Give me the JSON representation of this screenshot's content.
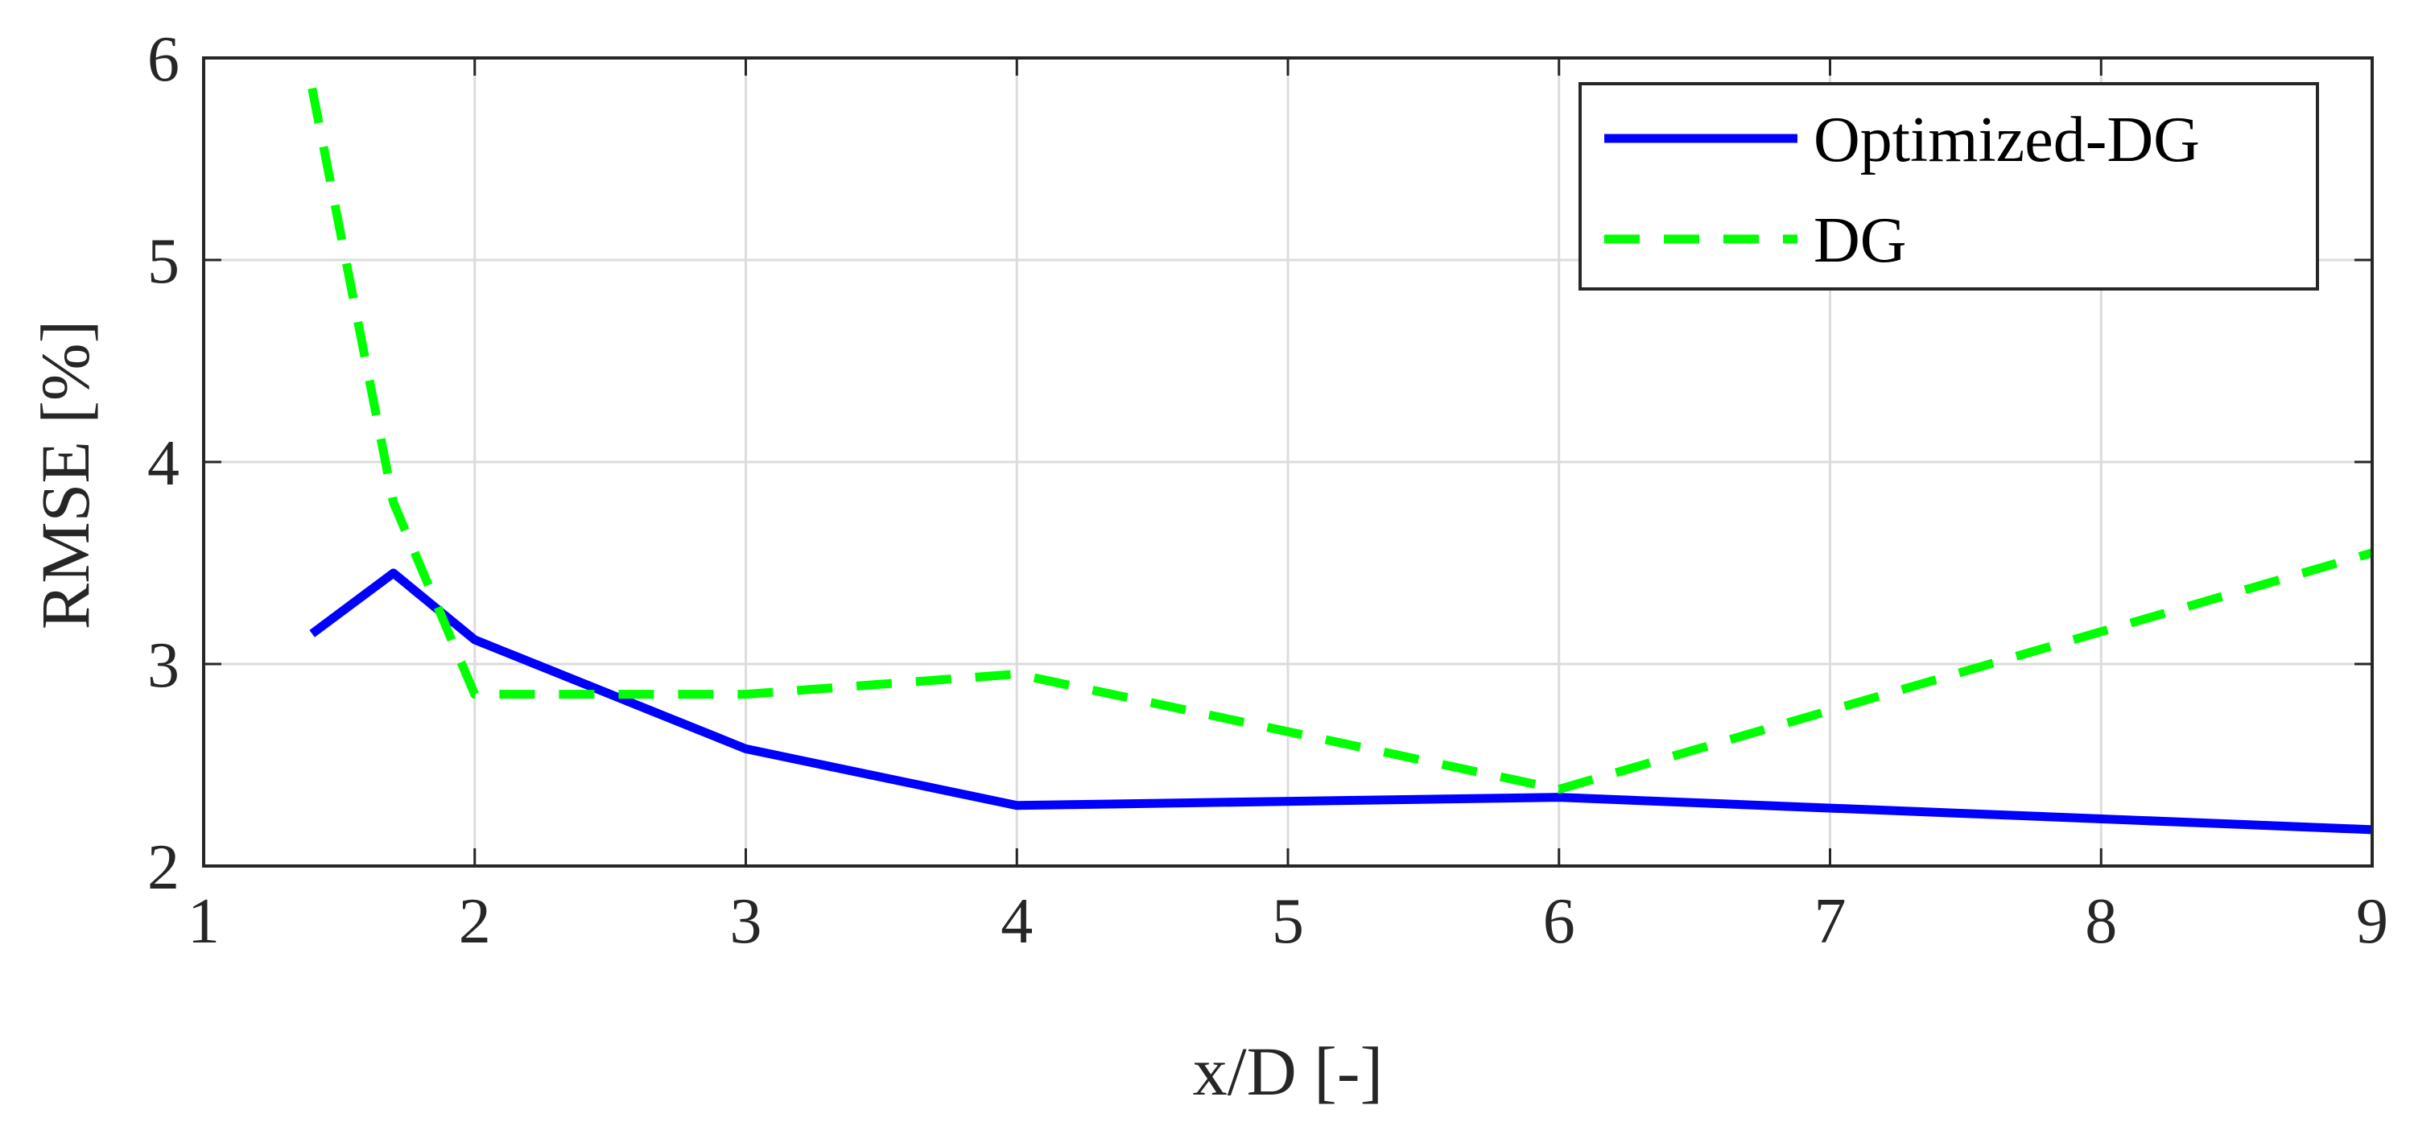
{
  "chart_data": {
    "type": "line",
    "xlabel": "x/D [-]",
    "ylabel": "RMSE [%]",
    "series": [
      {
        "name": "Optimized-DG",
        "color": "#0000ff",
        "dash": false,
        "x": [
          1.4,
          1.7,
          2,
          3,
          4,
          6,
          9
        ],
        "values": [
          3.15,
          3.45,
          3.12,
          2.58,
          2.3,
          2.34,
          2.18
        ]
      },
      {
        "name": "DG",
        "color": "#00ff00",
        "dash": true,
        "x": [
          1.4,
          1.7,
          2,
          3,
          4,
          6,
          9
        ],
        "values": [
          5.85,
          3.8,
          2.85,
          2.85,
          2.95,
          2.38,
          3.55
        ]
      }
    ],
    "xlim": [
      1,
      9
    ],
    "xticks": [
      1,
      2,
      3,
      4,
      5,
      6,
      7,
      8,
      9
    ],
    "ylim": [
      2,
      6
    ],
    "yticks": [
      2,
      3,
      4,
      5,
      6
    ],
    "grid": true,
    "legend": "northeast"
  }
}
